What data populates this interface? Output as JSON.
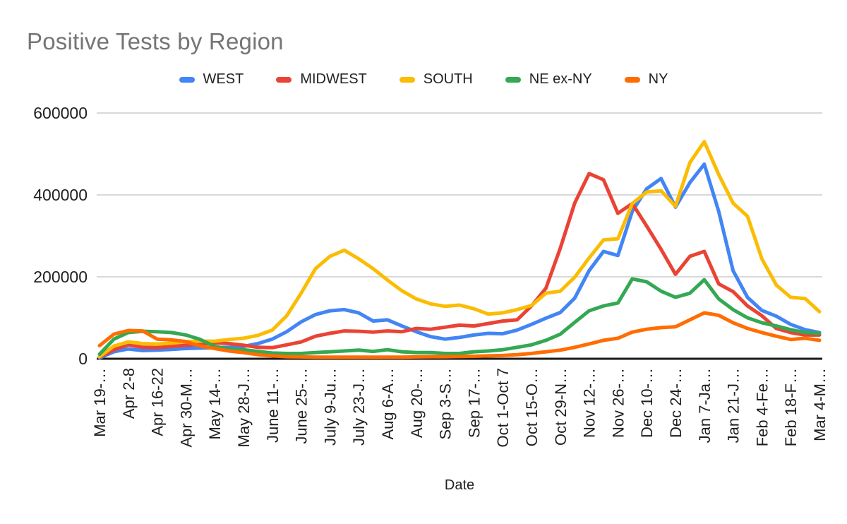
{
  "chart_data": {
    "type": "line",
    "title": "Positive Tests by Region",
    "x_axis_title": "Date",
    "y_ticks": [
      0,
      200000,
      400000,
      600000
    ],
    "ylim": [
      0,
      600000
    ],
    "grid": true,
    "legend_position": "top",
    "x_label_frequency": "every 2nd weekly point",
    "x_labels": [
      "Mar 19-…",
      "Apr 2-8",
      "Apr 16-22",
      "Apr 30-M…",
      "May 14-…",
      "May 28-J…",
      "June 11-…",
      "June 25-…",
      "July 9-Ju…",
      "July 23-J…",
      "Aug 6-A…",
      "Aug 20-…",
      "Sep 3-S…",
      "Sep 17-…",
      "Oct 1-Oct 7",
      "Oct 15-O…",
      "Oct 29-N…",
      "Nov 12-…",
      "Nov 26-…",
      "Dec 10-…",
      "Dec 24-…",
      "Jan 7-Ja…",
      "Jan 21-J…",
      "Feb 4-Fe…",
      "Feb 18-F…",
      "Mar 4-M…"
    ],
    "series": [
      {
        "name": "WEST",
        "color": "#4285F4",
        "values": [
          2000,
          17000,
          24000,
          20000,
          21000,
          23000,
          25000,
          26000,
          27000,
          28000,
          30000,
          37000,
          48000,
          66000,
          90000,
          108000,
          117000,
          120000,
          112000,
          92000,
          95000,
          80000,
          66000,
          54000,
          48000,
          52000,
          58000,
          62000,
          61000,
          70000,
          84000,
          99000,
          113000,
          148000,
          215000,
          262000,
          252000,
          360000,
          415000,
          440000,
          370000,
          430000,
          475000,
          360000,
          215000,
          150000,
          118000,
          104000,
          84000,
          71000,
          64000
        ]
      },
      {
        "name": "MIDWEST",
        "color": "#EA4335",
        "values": [
          4000,
          22000,
          34000,
          28000,
          27000,
          30000,
          33000,
          35000,
          39000,
          37000,
          33000,
          28000,
          27000,
          34000,
          41000,
          55000,
          62000,
          68000,
          67000,
          65000,
          68000,
          66000,
          74000,
          72000,
          77000,
          82000,
          80000,
          86000,
          92000,
          95000,
          129000,
          172000,
          270000,
          380000,
          452000,
          437000,
          355000,
          379000,
          324000,
          267000,
          206000,
          250000,
          262000,
          183000,
          164000,
          129000,
          105000,
          74000,
          64000,
          58000,
          58000
        ]
      },
      {
        "name": "SOUTH",
        "color": "#FBBC04",
        "values": [
          5000,
          31000,
          41000,
          37000,
          36000,
          38000,
          42000,
          43000,
          43000,
          47000,
          50000,
          57000,
          70000,
          105000,
          160000,
          220000,
          250000,
          265000,
          244000,
          220000,
          192000,
          166000,
          146000,
          134000,
          128000,
          131000,
          122000,
          109000,
          112000,
          120000,
          130000,
          160000,
          165000,
          199000,
          246000,
          290000,
          293000,
          379000,
          407000,
          410000,
          372000,
          479000,
          530000,
          450000,
          380000,
          348000,
          244000,
          180000,
          150000,
          147000,
          115000
        ]
      },
      {
        "name": "NE ex-NY",
        "color": "#34A853",
        "values": [
          11000,
          48000,
          64000,
          67000,
          66000,
          64000,
          58000,
          47000,
          30000,
          24000,
          22000,
          18000,
          14000,
          13000,
          13000,
          15000,
          17000,
          19000,
          21000,
          18000,
          22000,
          17000,
          15000,
          15000,
          13000,
          13000,
          17000,
          19000,
          22000,
          28000,
          34000,
          45000,
          60000,
          89000,
          117000,
          129000,
          136000,
          195000,
          188000,
          165000,
          150000,
          160000,
          193000,
          146000,
          120000,
          100000,
          88000,
          80000,
          71000,
          64000,
          62000
        ]
      },
      {
        "name": "NY",
        "color": "#FF6D01",
        "values": [
          32000,
          60000,
          69000,
          68000,
          48000,
          46000,
          42000,
          31000,
          25000,
          19000,
          15000,
          10000,
          7000,
          5000,
          4500,
          4000,
          4000,
          4000,
          4000,
          4000,
          4000,
          4000,
          4500,
          5000,
          5000,
          5500,
          6000,
          7000,
          8000,
          10000,
          13000,
          17000,
          21000,
          28000,
          36000,
          45000,
          50000,
          65000,
          72000,
          76000,
          78000,
          95000,
          112000,
          106000,
          88000,
          74000,
          64000,
          55000,
          47000,
          50000,
          45000
        ]
      }
    ],
    "colors": {
      "title_text": "#757575",
      "axis_text": "#1f1f1f",
      "grid_line": "#d9d9d9",
      "axis_line": "#1a1a1a",
      "background": "#ffffff"
    }
  }
}
